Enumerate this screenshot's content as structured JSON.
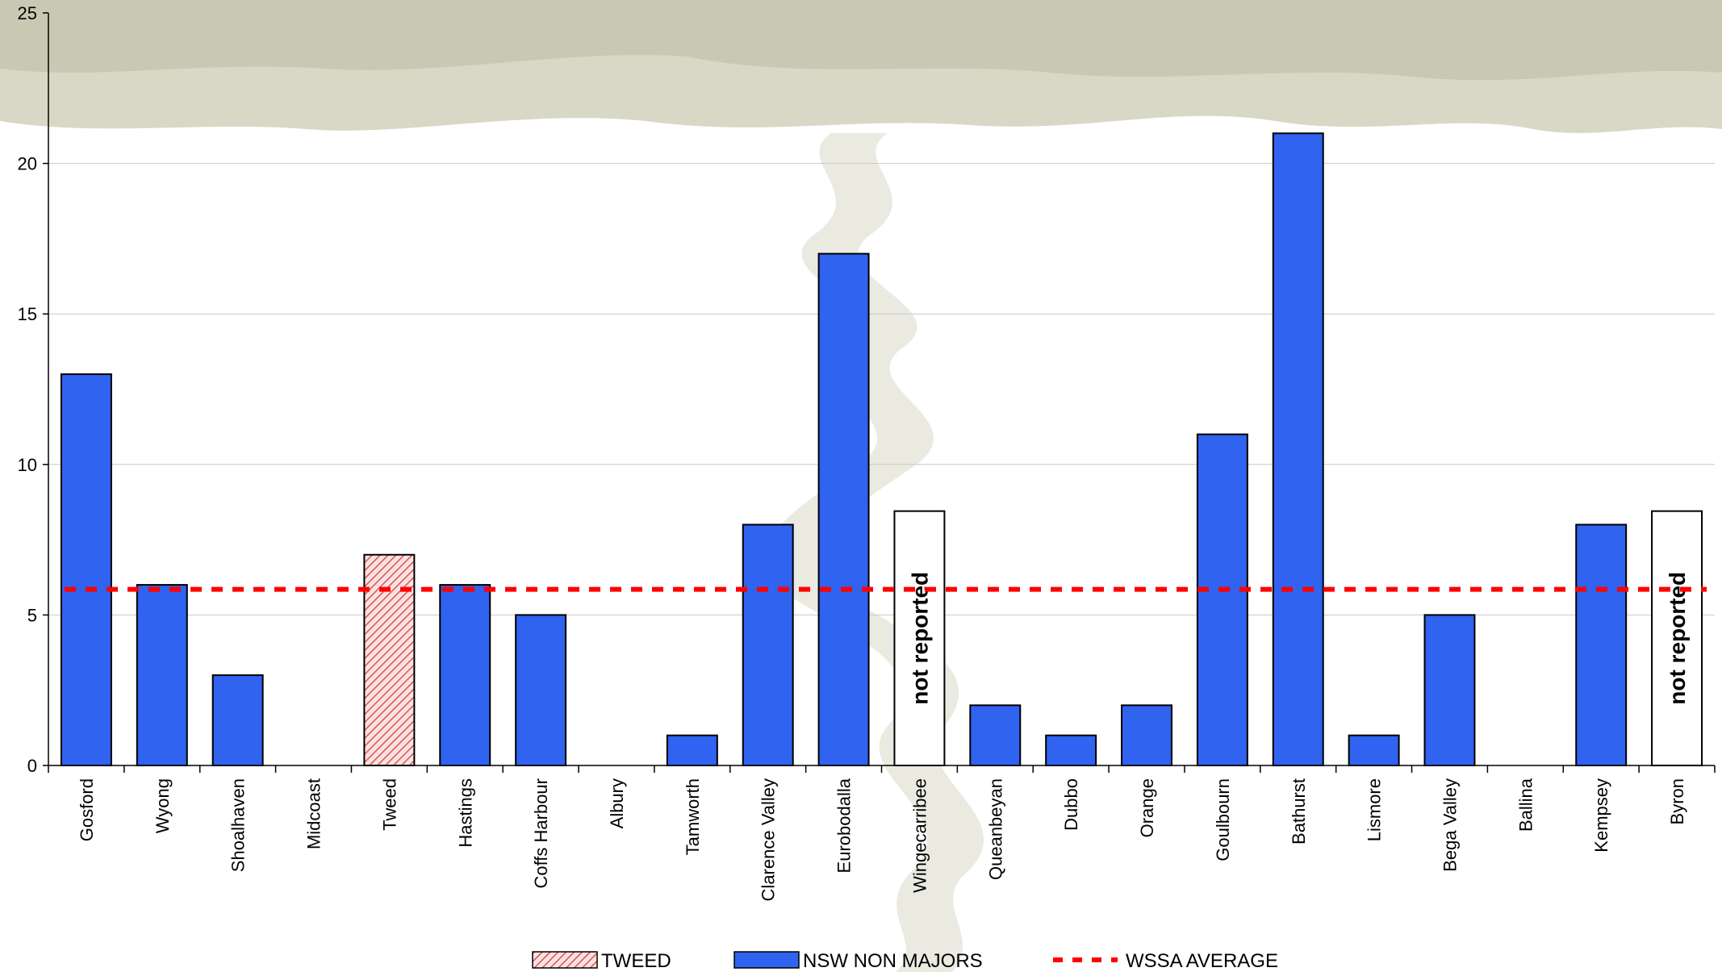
{
  "chart_data": {
    "type": "bar",
    "title": "",
    "xlabel": "",
    "ylabel": "",
    "ylim": [
      0,
      25
    ],
    "yticks": [
      0,
      5,
      10,
      15,
      20,
      25
    ],
    "grid": true,
    "legend_position": "bottom",
    "categories": [
      "Gosford",
      "Wyong",
      "Shoalhaven",
      "Midcoast",
      "Tweed",
      "Hastings",
      "Coffs Harbour",
      "Albury",
      "Tamworth",
      "Clarence Valley",
      "Eurobodalla",
      "Wingecarribee",
      "Queanbeyan",
      "Dubbo",
      "Orange",
      "Goulbourn",
      "Bathurst",
      "Lismore",
      "Bega Valley",
      "Ballina",
      "Kempsey",
      "Byron"
    ],
    "values": [
      13,
      6,
      3,
      0,
      7,
      6,
      5,
      0,
      1,
      8,
      17,
      null,
      2,
      1,
      2,
      11,
      21,
      1,
      5,
      0,
      8,
      null
    ],
    "highlight_category": "Tweed",
    "not_reported_categories": [
      "Wingecarribee",
      "Byron"
    ],
    "not_reported_label": "not reported",
    "average_line": {
      "name": "WSSA AVERAGE",
      "value": 5.85
    },
    "legend": [
      {
        "name": "TWEED",
        "style": "hatched",
        "color": "#e05050"
      },
      {
        "name": "NSW NON MAJORS",
        "style": "solid",
        "color": "#2f63f0"
      },
      {
        "name": "WSSA AVERAGE",
        "style": "dashed",
        "color": "#ff0000"
      }
    ],
    "colors": {
      "bar": "#2f63f0",
      "tweed": "#e05050",
      "average": "#ff0000"
    }
  }
}
